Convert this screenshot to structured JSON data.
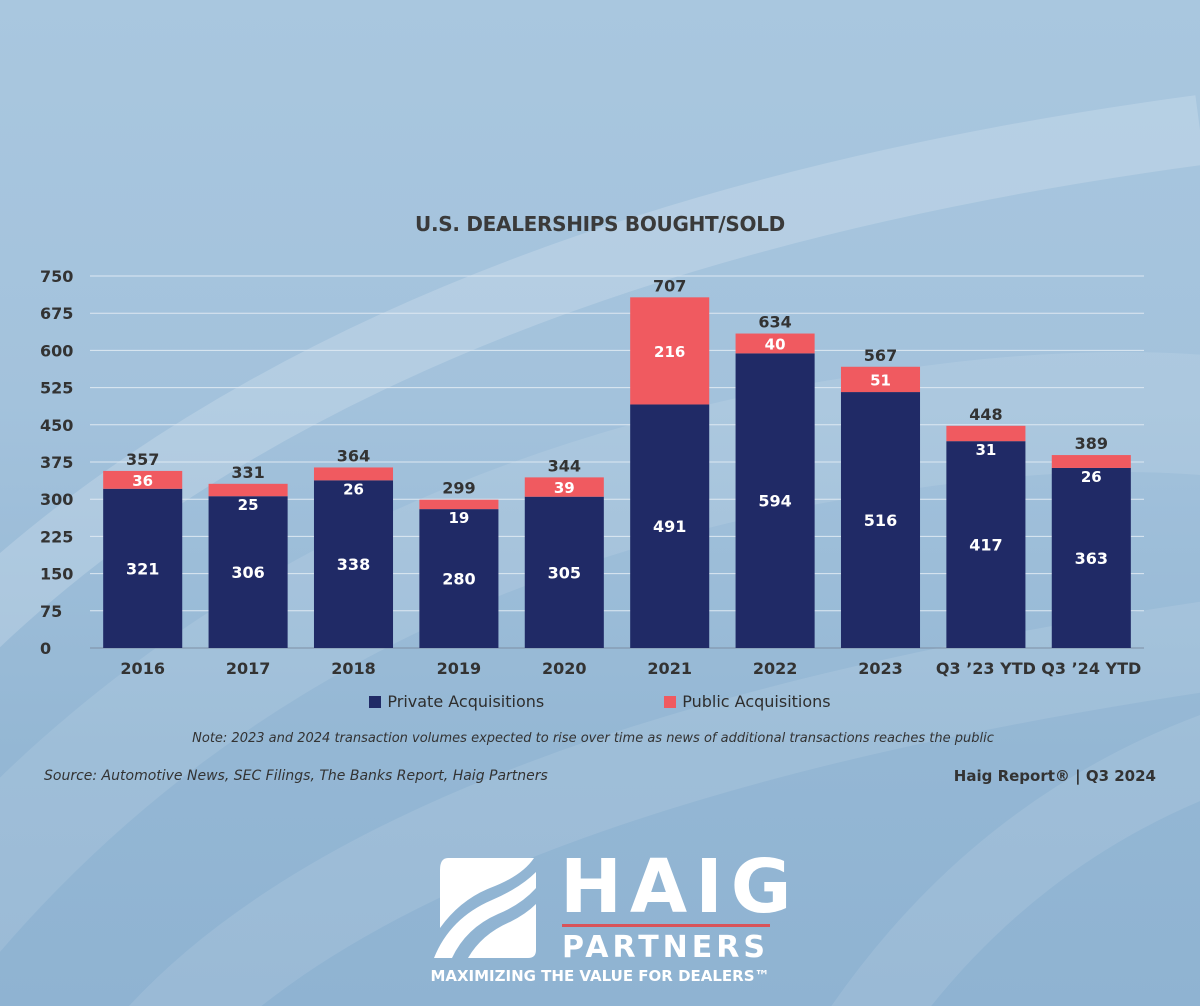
{
  "chart_data": {
    "type": "bar",
    "stacked": true,
    "title": "U.S. DEALERSHIPS BOUGHT/SOLD",
    "categories": [
      "2016",
      "2017",
      "2018",
      "2019",
      "2020",
      "2021",
      "2022",
      "2023",
      "Q3 ’23 YTD",
      "Q3 ’24 YTD"
    ],
    "series": [
      {
        "name": "Private Acquisitions",
        "color": "#202a66",
        "values": [
          321,
          306,
          338,
          280,
          305,
          491,
          594,
          516,
          417,
          363
        ]
      },
      {
        "name": "Public Acquisitions",
        "color": "#f05a60",
        "values": [
          36,
          25,
          26,
          19,
          39,
          216,
          40,
          51,
          31,
          26
        ]
      }
    ],
    "totals": [
      357,
      331,
      364,
      299,
      344,
      707,
      634,
      567,
      448,
      389
    ],
    "yticks": [
      0,
      75,
      150,
      225,
      300,
      375,
      450,
      525,
      600,
      675,
      750
    ],
    "ylim": [
      0,
      750
    ],
    "grid": true,
    "legend_position": "bottom"
  },
  "note": "Note: 2023 and 2024 transaction volumes expected to rise over time as news of additional transactions reaches the public",
  "source": "Source: Automotive News, SEC Filings, The Banks Report, Haig Partners",
  "report": "Haig Report® | Q3 2024",
  "logo": {
    "name": "HAIG",
    "sub": "PARTNERS",
    "tagline": "MAXIMIZING THE VALUE FOR DEALERS™",
    "accent": "#d9535a"
  }
}
